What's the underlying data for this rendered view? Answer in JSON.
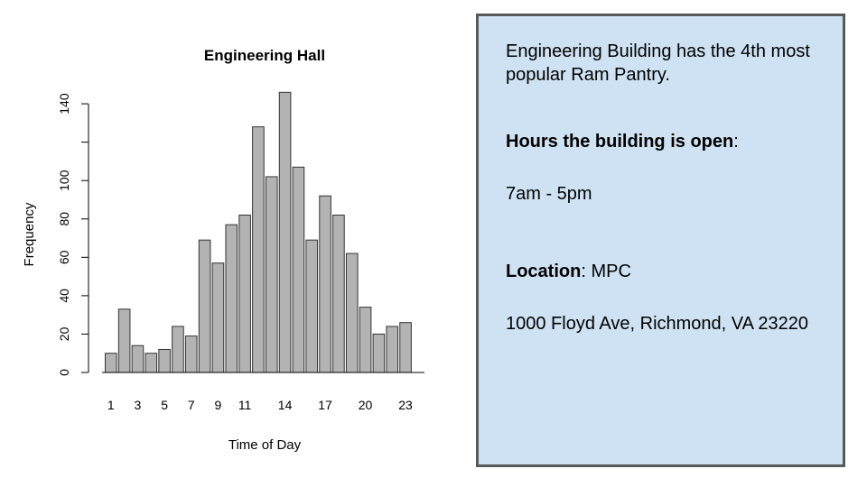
{
  "chart_data": {
    "type": "bar",
    "title": "Engineering Hall",
    "xlabel": "Time of Day",
    "ylabel": "Frequency",
    "categories": [
      1,
      2,
      3,
      4,
      5,
      6,
      7,
      8,
      9,
      10,
      11,
      12,
      13,
      14,
      15,
      16,
      17,
      18,
      19,
      20,
      21,
      22,
      23
    ],
    "values": [
      10,
      33,
      14,
      10,
      12,
      24,
      19,
      69,
      57,
      77,
      82,
      128,
      102,
      146,
      107,
      69,
      92,
      82,
      62,
      34,
      20,
      24,
      26
    ],
    "ylim": [
      0,
      150
    ],
    "yticks": [
      0,
      20,
      40,
      60,
      80,
      100,
      140
    ],
    "xtick_labels": [
      "1",
      "3",
      "5",
      "7",
      "9",
      "11",
      "14",
      "17",
      "20",
      "23"
    ],
    "grid": false
  },
  "info": {
    "intro": "Engineering Building has the 4th most popular Ram Pantry.",
    "hours_heading": "Hours the building is open",
    "hours_heading_suffix": ":",
    "hours": "7am - 5pm",
    "location_label": "Location",
    "location_value": ": MPC",
    "address": "1000 Floyd Ave, Richmond, VA 23220"
  },
  "colors": {
    "bar_fill": "#b3b3b3",
    "bar_stroke": "#333333",
    "panel_fill": "#cfe2f3",
    "panel_border": "#595959"
  }
}
